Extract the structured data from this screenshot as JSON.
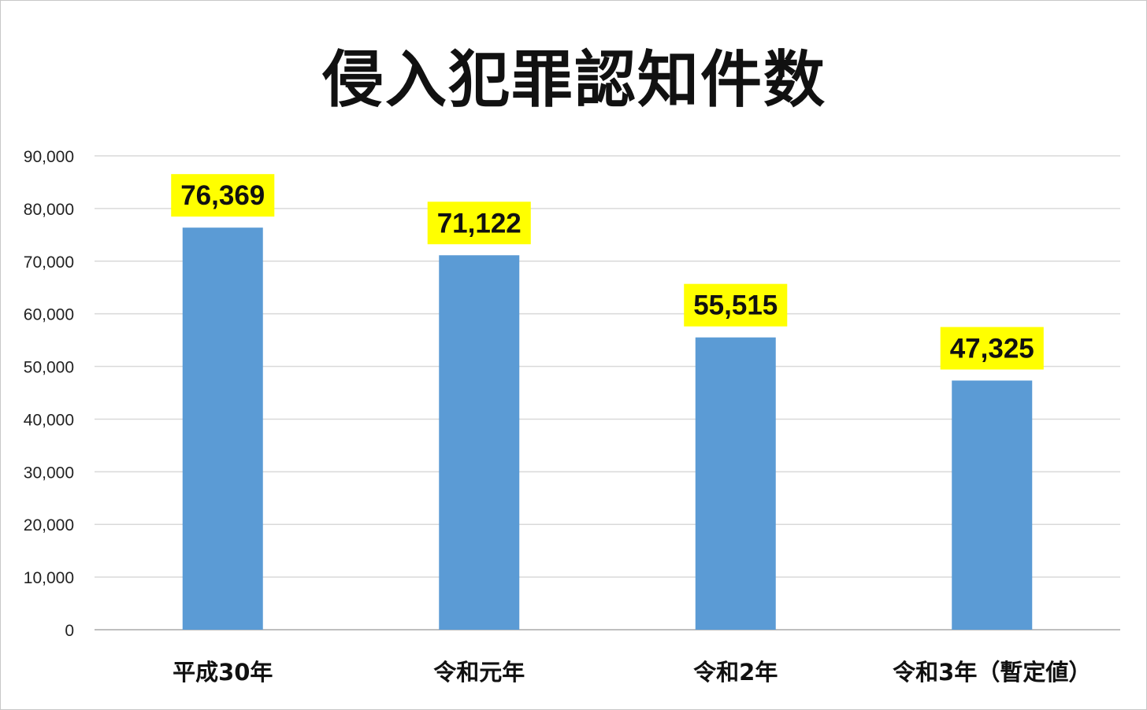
{
  "chart_data": {
    "type": "bar",
    "title": "侵入犯罪認知件数",
    "categories": [
      "平成30年",
      "令和元年",
      "令和2年",
      "令和3年（暫定値）"
    ],
    "values": [
      76369,
      71122,
      55515,
      47325
    ],
    "data_labels": [
      "76,369",
      "71,122",
      "55,515",
      "47,325"
    ],
    "y_ticks": [
      "0",
      "10,000",
      "20,000",
      "30,000",
      "40,000",
      "50,000",
      "60,000",
      "70,000",
      "80,000",
      "90,000"
    ],
    "ylim": [
      0,
      90000
    ],
    "grid": true,
    "legend": "none",
    "colors": {
      "bar": "#5b9bd5",
      "label_bg": "#ffff00",
      "grid": "#d9d9d9",
      "axis": "#bfbfbf"
    }
  }
}
